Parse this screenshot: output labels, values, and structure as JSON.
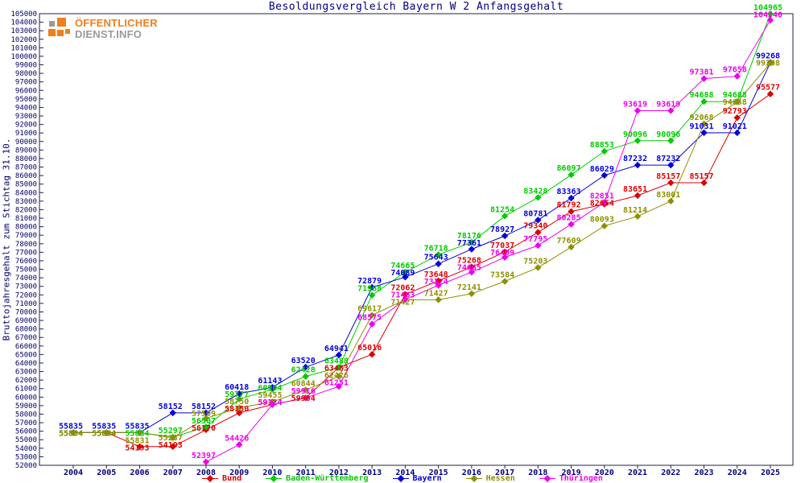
{
  "title": "Besoldungsvergleich Bayern W 2 Anfangsgehalt",
  "logo": {
    "line1": "ÖFFENTLICHER",
    "line2": "DIENST.INFO"
  },
  "y_axis": {
    "label": "Bruttojahresgehalt zum Stichtag 31.10.",
    "min": 52000,
    "max": 105000,
    "step": 1000
  },
  "chart_data": {
    "type": "line",
    "x": [
      2004,
      2005,
      2006,
      2007,
      2008,
      2009,
      2010,
      2011,
      2012,
      2013,
      2014,
      2015,
      2016,
      2017,
      2018,
      2019,
      2020,
      2021,
      2022,
      2023,
      2024,
      2025
    ],
    "title": "Besoldungsvergleich Bayern W 2 Anfangsgehalt",
    "xlabel": "",
    "ylabel": "Bruttojahresgehalt zum Stichtag 31.10.",
    "ylim": [
      52000,
      105000
    ],
    "grid": false,
    "legend_position": "bottom",
    "marker": "diamond",
    "point_labels": true,
    "series": [
      {
        "name": "Bund",
        "color": "#dd0000",
        "values": [
          55834,
          55834,
          54193,
          54193,
          56170,
          58150,
          59124,
          59904,
          63483,
          65016,
          72062,
          73648,
          75268,
          77037,
          79340,
          81792,
          82654,
          83651,
          85157,
          85157,
          92793,
          95577
        ]
      },
      {
        "name": "Baden-Württemberg",
        "color": "#00cc00",
        "values": [
          55834,
          55834,
          55834,
          55297,
          56507,
          59777,
          60904,
          62428,
          63488,
          71968,
          74665,
          76718,
          78176,
          81254,
          83428,
          86097,
          88853,
          90096,
          90096,
          94688,
          94688,
          104965
        ]
      },
      {
        "name": "Bayern",
        "color": "#0000dd",
        "values": [
          55835,
          55835,
          55835,
          58152,
          58152,
          60418,
          61143,
          63520,
          64941,
          72879,
          74089,
          75643,
          77361,
          78927,
          80781,
          83363,
          86029,
          87232,
          87232,
          91031,
          91021,
          99268
        ]
      },
      {
        "name": "Hessen",
        "color": "#8f8f00",
        "values": [
          55834,
          55834,
          55831,
          55237,
          57509,
          58750,
          59455,
          60844,
          62426,
          69617,
          71427,
          71427,
          72141,
          73584,
          75203,
          77609,
          80093,
          81214,
          83001,
          92068,
          94638,
          99208
        ]
      },
      {
        "name": "Thüringen",
        "color": "#ee00ee",
        "values": [
          null,
          null,
          null,
          null,
          52397,
          54426,
          59124,
          59916,
          61251,
          68575,
          71463,
          73124,
          74665,
          76409,
          77795,
          80285,
          82851,
          93619,
          93619,
          97381,
          97658,
          104240
        ]
      }
    ]
  }
}
